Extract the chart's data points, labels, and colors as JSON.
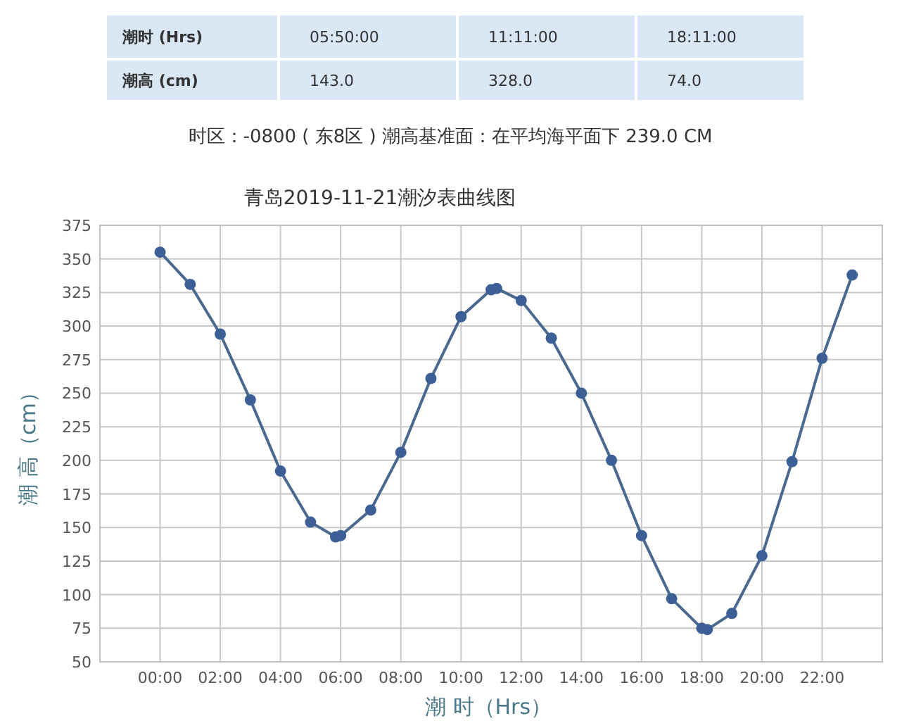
{
  "chart_data": {
    "type": "line",
    "title": "青岛2019-11-21潮汐表曲线图",
    "subtitle": "时区：-0800 ( 东8区 ) 潮高基准面：在平均海平面下 239.0 CM",
    "annotations": [
      "潮时 (Hrs)",
      "05:50:00",
      "11:11:00",
      "18:11:00",
      "潮高 (cm)",
      "143.0",
      "328.0",
      "74.0"
    ],
    "xlabel": "潮 时（Hrs）",
    "ylabel": "潮 高（cm）",
    "series": [
      {
        "color": "#4a6890",
        "x": [
          0,
          1,
          2,
          3,
          4,
          5,
          5.833,
          6,
          7,
          8,
          9,
          10,
          11,
          11.183,
          12,
          13,
          14,
          15,
          16,
          17,
          18,
          18.183,
          19,
          20,
          21,
          22,
          23
        ],
        "values": [
          355,
          331,
          294,
          245,
          192,
          154,
          143,
          144,
          163,
          206,
          261,
          307,
          327,
          328,
          319,
          291,
          250,
          200,
          144,
          97,
          75,
          74,
          86,
          129,
          199,
          276,
          338
        ]
      }
    ],
    "xlim": [
      -2,
      24
    ],
    "xticks": [
      {
        "value": 0,
        "label": "00:00"
      },
      {
        "value": 2,
        "label": "02:00"
      },
      {
        "value": 4,
        "label": "04:00"
      },
      {
        "value": 6,
        "label": "06:00"
      },
      {
        "value": 8,
        "label": "08:00"
      },
      {
        "value": 10,
        "label": "10:00"
      },
      {
        "value": 12,
        "label": "12:00"
      },
      {
        "value": 14,
        "label": "14:00"
      },
      {
        "value": 16,
        "label": "16:00"
      },
      {
        "value": 18,
        "label": "18:00"
      },
      {
        "value": 20,
        "label": "20:00"
      },
      {
        "value": 22,
        "label": "22:00"
      }
    ],
    "ylim": [
      50,
      375
    ],
    "yticks": [
      50,
      75,
      100,
      125,
      150,
      175,
      200,
      225,
      250,
      275,
      300,
      325,
      350,
      375
    ],
    "grid": true,
    "marker": "circle",
    "line_style": "solid"
  }
}
